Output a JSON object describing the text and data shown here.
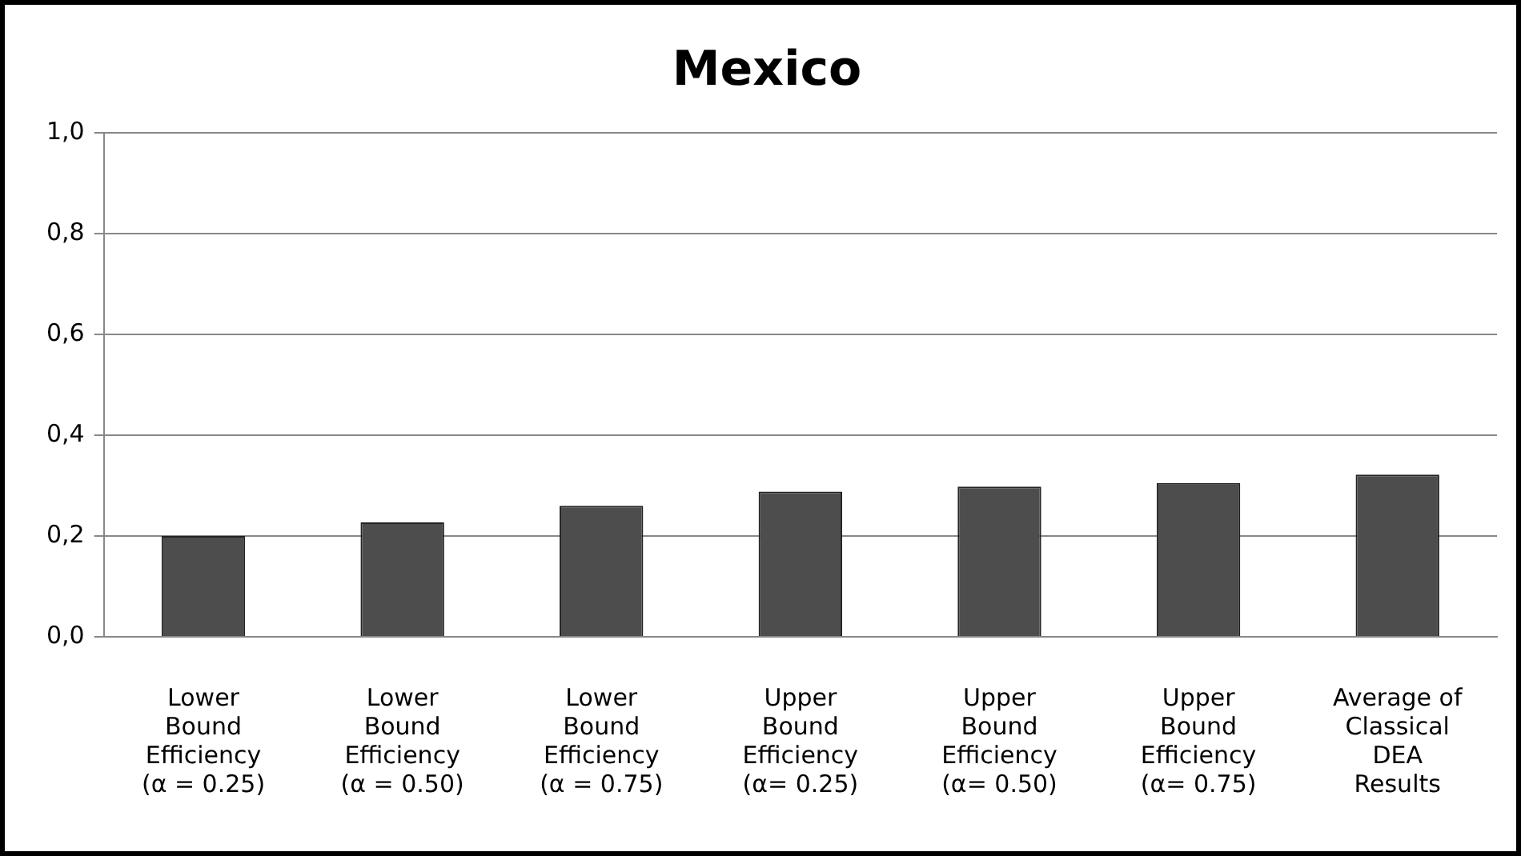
{
  "chart_data": {
    "type": "bar",
    "title": "Mexico",
    "categories": [
      "Lower\nBound\nEfficiency\n(α = 0.25)",
      "Lower\nBound\nEfficiency\n(α = 0.50)",
      "Lower\nBound\nEfficiency\n(α = 0.75)",
      "Upper\nBound\nEfficiency\n(α= 0.25)",
      "Upper\nBound\nEfficiency\n(α= 0.50)",
      "Upper\nBound\nEfficiency\n(α= 0.75)",
      "Average of\nClassical\nDEA\nResults"
    ],
    "values": [
      0.2,
      0.227,
      0.26,
      0.288,
      0.298,
      0.305,
      0.322
    ],
    "color": "#4d4d4d",
    "ylim": [
      0,
      1
    ],
    "yticks": [
      {
        "value": 0,
        "label": "0,0"
      },
      {
        "value": 0.2,
        "label": "0,2"
      },
      {
        "value": 0.4,
        "label": "0,4"
      },
      {
        "value": 0.6,
        "label": "0,6"
      },
      {
        "value": 0.8,
        "label": "0,8"
      },
      {
        "value": 1,
        "label": "1,0"
      }
    ],
    "grid": "y",
    "legend": false
  }
}
